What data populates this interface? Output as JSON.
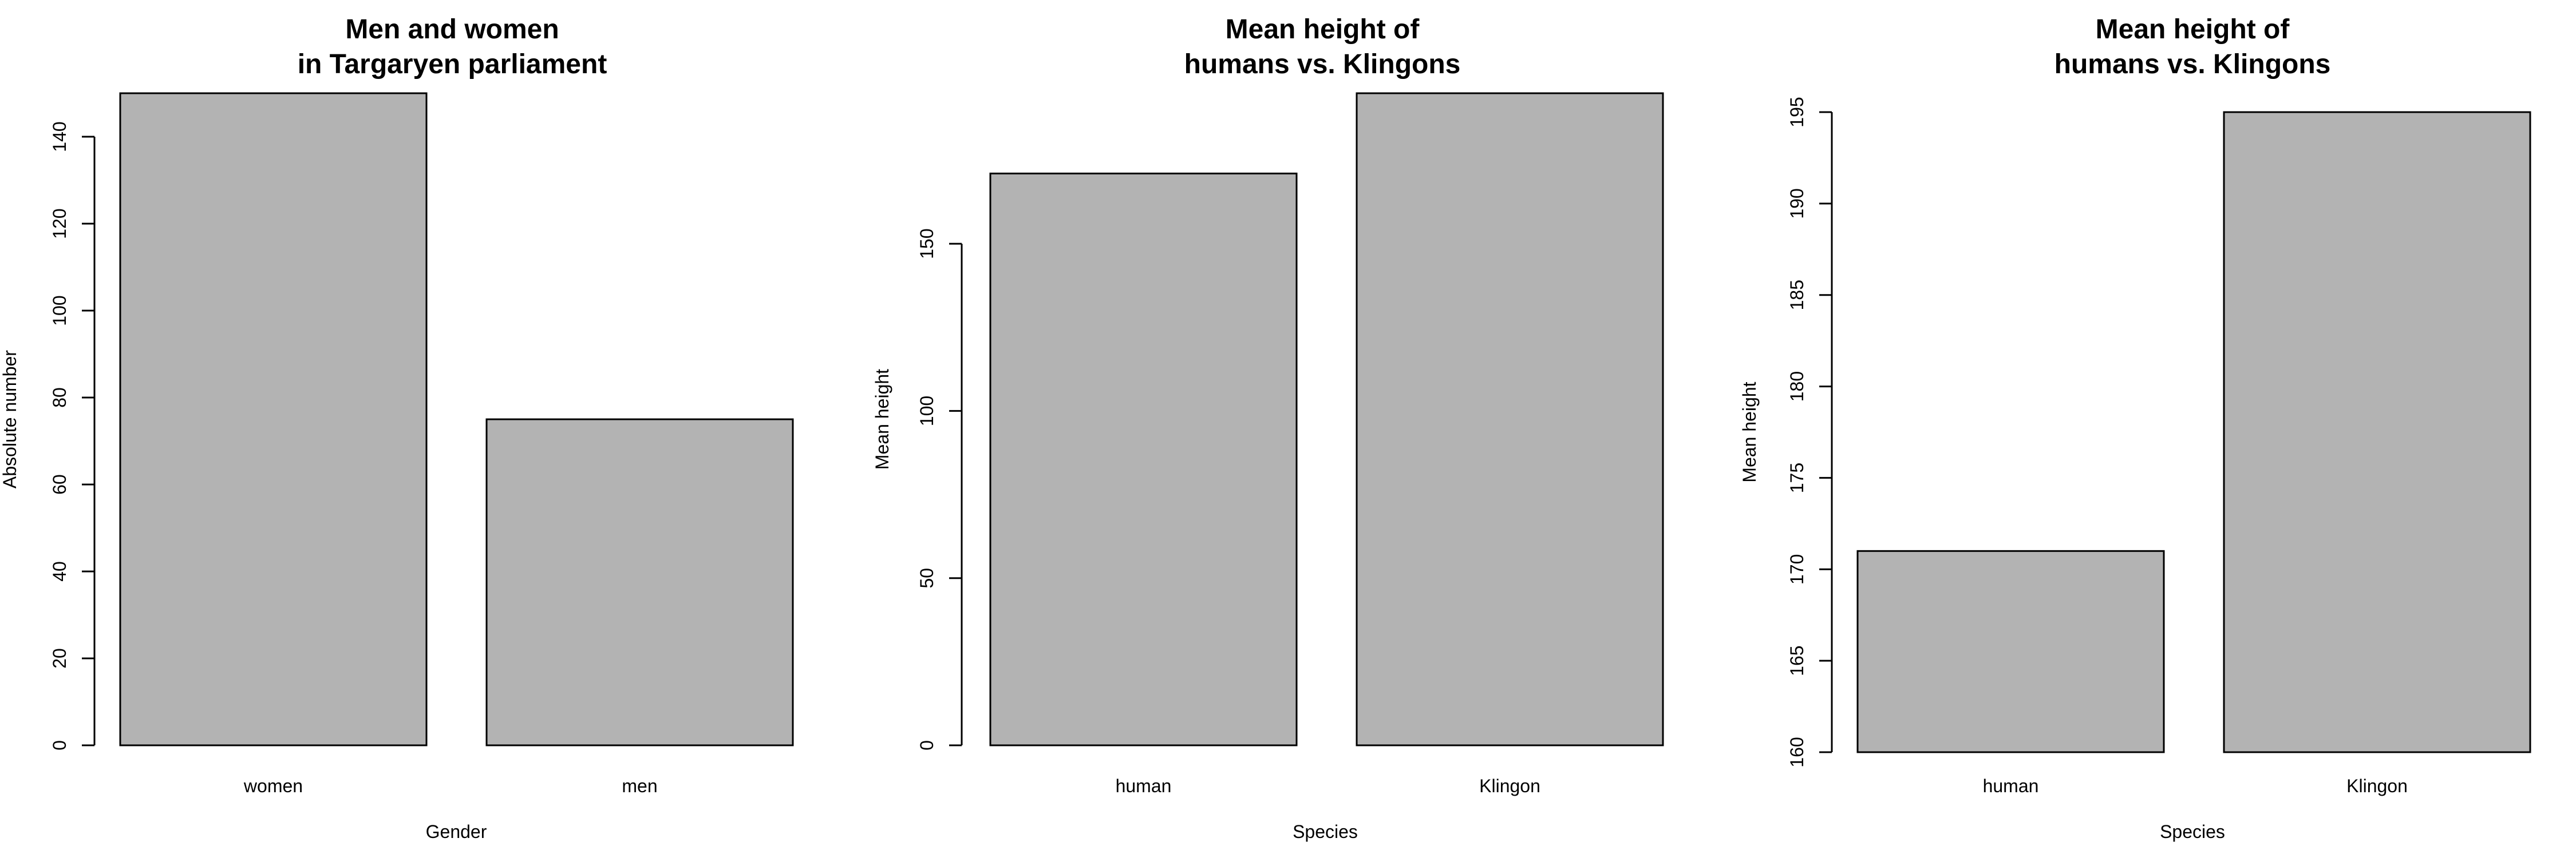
{
  "chart_data": [
    {
      "type": "bar",
      "title": "Men and women\nin Targaryen parliament",
      "xlabel": "Gender",
      "ylabel": "Absolute number",
      "categories": [
        "women",
        "men"
      ],
      "values": [
        150,
        75
      ],
      "ylim": [
        0,
        150
      ],
      "yticks": [
        0,
        20,
        40,
        60,
        80,
        100,
        120,
        140
      ],
      "bar_color": "#b3b3b3",
      "grid": false
    },
    {
      "type": "bar",
      "title": "Mean height of\nhumans vs. Klingons",
      "xlabel": "Species",
      "ylabel": "Mean height",
      "categories": [
        "human",
        "Klingon"
      ],
      "values": [
        171,
        195
      ],
      "ylim": [
        0,
        195
      ],
      "yticks": [
        0,
        50,
        100,
        150
      ],
      "bar_color": "#b3b3b3",
      "grid": false
    },
    {
      "type": "bar",
      "title": "Mean height of\nhumans vs. Klingons",
      "xlabel": "Species",
      "ylabel": "Mean height",
      "categories": [
        "human",
        "Klingon"
      ],
      "values": [
        171,
        195
      ],
      "ylim": [
        160,
        195
      ],
      "yticks": [
        160,
        165,
        170,
        175,
        180,
        185,
        190,
        195
      ],
      "bar_color": "#b3b3b3",
      "grid": false
    }
  ]
}
